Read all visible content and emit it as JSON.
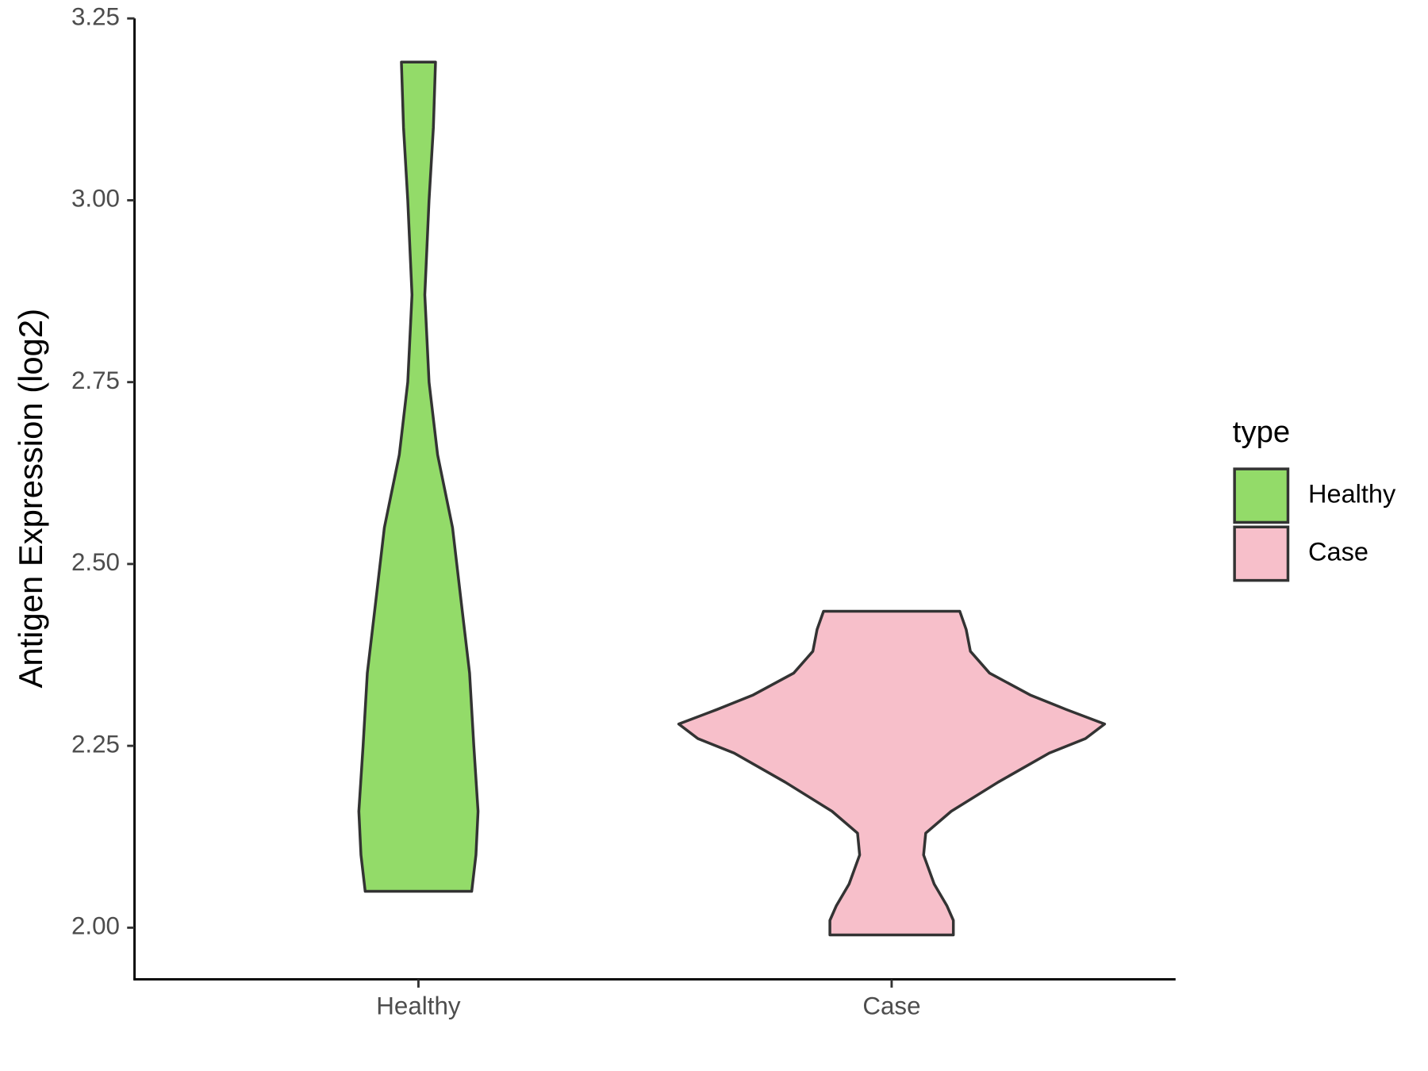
{
  "chart_data": {
    "type": "violin",
    "y_label": "Antigen Expression (log2)",
    "categories": [
      "Healthy",
      "Case"
    ],
    "legend_title": "type",
    "legend_position": "right",
    "ylim": [
      1.929,
      3.25
    ],
    "yticks": [
      {
        "value": 2,
        "label": "2.00"
      },
      2.25,
      {
        "value": 2.5,
        "label": "2.50"
      },
      2.75,
      {
        "value": 3,
        "label": "3.00"
      },
      3.25
    ],
    "series": [
      {
        "name": "Healthy",
        "color": "#93DB69",
        "y": [
          3.19,
          3.1,
          3.0,
          2.87,
          2.75,
          2.65,
          2.55,
          2.45,
          2.35,
          2.25,
          2.16,
          2.1,
          2.05
        ],
        "width": [
          0.08,
          0.07,
          0.05,
          0.03,
          0.05,
          0.09,
          0.16,
          0.2,
          0.24,
          0.26,
          0.28,
          0.27,
          0.25
        ]
      },
      {
        "name": "Case",
        "color": "#F7BFCA",
        "y": [
          2.435,
          2.41,
          2.38,
          2.35,
          2.32,
          2.3,
          2.28,
          2.26,
          2.24,
          2.2,
          2.16,
          2.13,
          2.1,
          2.06,
          2.03,
          2.01,
          1.99
        ],
        "width": [
          0.32,
          0.35,
          0.37,
          0.46,
          0.65,
          0.82,
          1.0,
          0.91,
          0.74,
          0.5,
          0.28,
          0.16,
          0.15,
          0.2,
          0.26,
          0.29,
          0.29
        ]
      }
    ]
  }
}
